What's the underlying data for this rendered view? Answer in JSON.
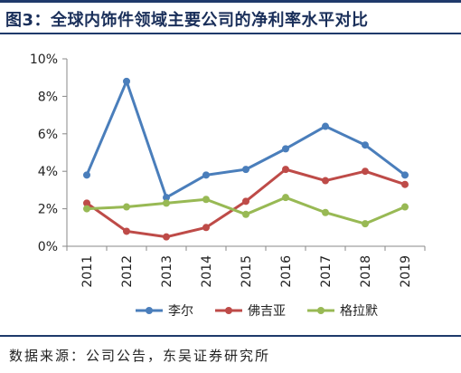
{
  "title": "图3：全球内饰件领域主要公司的净利率水平对比",
  "source": "数据来源：公司公告，东吴证券研究所",
  "chart_data": {
    "type": "line",
    "x": [
      "2011",
      "2012",
      "2013",
      "2014",
      "2015",
      "2016",
      "2017",
      "2018",
      "2019"
    ],
    "yticks": [
      "0%",
      "2%",
      "4%",
      "6%",
      "8%",
      "10%"
    ],
    "ylim": [
      0,
      10
    ],
    "series": [
      {
        "name": "李尔",
        "color": "#4a7ebb",
        "values": [
          3.8,
          8.8,
          2.6,
          3.8,
          4.1,
          5.2,
          6.4,
          5.4,
          3.8
        ]
      },
      {
        "name": "佛吉亚",
        "color": "#be4b48",
        "values": [
          2.3,
          0.8,
          0.5,
          1.0,
          2.4,
          4.1,
          3.5,
          4.0,
          3.3
        ]
      },
      {
        "name": "格拉默",
        "color": "#98b954",
        "values": [
          2.0,
          2.1,
          2.3,
          2.5,
          1.7,
          2.6,
          1.8,
          1.2,
          2.1
        ]
      }
    ],
    "grid": false,
    "legend_position": "bottom"
  }
}
